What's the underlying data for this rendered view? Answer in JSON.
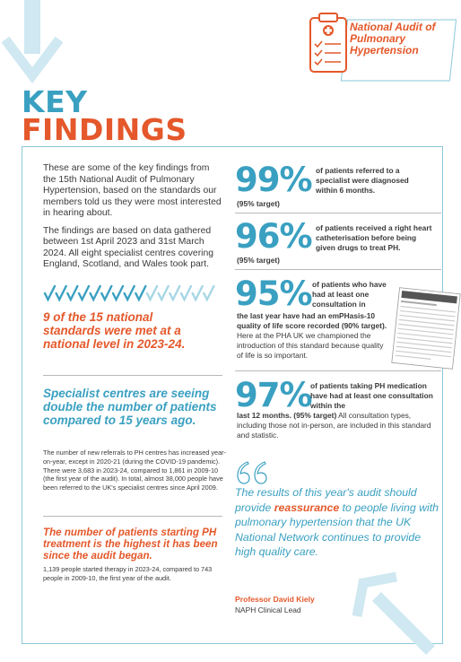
{
  "header": {
    "badge_title": "National Audit of Pulmonary Hypertension",
    "title_line1": "KEY",
    "title_line2": "FINDINGS"
  },
  "intro": {
    "p1": "These are some of the key findings from the 15th National Audit of Pulmonary Hypertension, based on the standards our members told us they were most interested in hearing about.",
    "p2": "The findings are based on data gathered between 1st April 2023 and 31st March 2024. All eight specialist centres covering England, Scotland, and Wales took part."
  },
  "standards": {
    "met": 9,
    "total": 15,
    "text": "9 of the 15 national standards were met at a national level in 2023-24."
  },
  "specialist": {
    "heading": "Specialist centres are seeing double the number of patients compared to 15 years ago.",
    "body": "The number of new referrals to PH centres has increased year-on-year, except in 2020-21 (during the COVID-19 pandemic). There were 3,683 in 2023-24, compared to 1,861 in 2009-10 (the first year of the audit). In total, almost 38,000 people have been referred to the UK's specialist centres since April 2009."
  },
  "starting": {
    "heading": "The number of patients starting PH treatment is the highest it has been since the audit began.",
    "body": "1,139 people started therapy in 2023-24, compared to 743 people in 2009-10, the first year of the audit."
  },
  "stats": [
    {
      "value": "99%",
      "label": "of patients referred to a specialist were diagnosed within 6 months.",
      "target": "(95% target)"
    },
    {
      "value": "96%",
      "label": "of patients received a right heart catheterisation before being given drugs to treat PH.",
      "target": "(95% target)"
    },
    {
      "value": "95%",
      "label_a": "of patients who have had at least one consultation in",
      "label_b": "the last year have had an emPHasis-10 quality of life score recorded (90% target).",
      "note": "Here at the PHA UK we championed the introduction of this standard because quality of life is so important."
    },
    {
      "value": "97%",
      "label_a": "of patients taking PH medication have had at least one consultation within the",
      "label_b": "last 12 months. (95% target)",
      "note": "All consultation types, including those not in-person, are included in this standard and statistic."
    }
  ],
  "quote": {
    "before": "The results of this year's audit should provide ",
    "emphasis": "reassurance",
    "after": " to people living with pulmonary hypertension that the UK National Network continues to provide high quality care.",
    "author": "Professor David Kiely",
    "role": "NAPH Clinical Lead"
  },
  "colors": {
    "blue": "#3aa0c1",
    "orange": "#e4582b",
    "light_blue": "#a7d6e5"
  },
  "icons": [
    "down-arrow-icon",
    "clipboard-icon",
    "checkmark-icon",
    "quote-icon",
    "up-arrow-icon"
  ]
}
